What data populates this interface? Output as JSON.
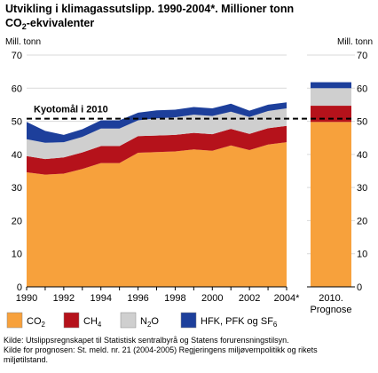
{
  "chart_data": {
    "type": "area",
    "stacked": true,
    "title_line1": "Utvikling i klimagassutslipp. 1990-2004*. Millioner tonn",
    "title_line2": {
      "pre": "CO",
      "sub": "2",
      "post": "-ekvivalenter"
    },
    "ylabel_left": "Mill. tonn",
    "ylabel_right": "Mill. tonn",
    "ylim": [
      0,
      70
    ],
    "yticks": [
      0,
      10,
      20,
      30,
      40,
      50,
      60,
      70
    ],
    "x": [
      1990,
      1991,
      1992,
      1993,
      1994,
      1995,
      1996,
      1997,
      1998,
      1999,
      2000,
      2001,
      2002,
      2003,
      2004
    ],
    "xticks": [
      {
        "x": 1990,
        "label": "1990"
      },
      {
        "x": 1992,
        "label": "1992"
      },
      {
        "x": 1994,
        "label": "1994"
      },
      {
        "x": 1996,
        "label": "1996"
      },
      {
        "x": 1998,
        "label": "1998"
      },
      {
        "x": 2000,
        "label": "2000"
      },
      {
        "x": 2002,
        "label": "2002"
      },
      {
        "x": 2004,
        "label": "2004*"
      }
    ],
    "series": [
      {
        "key": "co2",
        "name": {
          "pre": "CO",
          "sub": "2",
          "post": ""
        },
        "color": "#f7a13c",
        "values": [
          34.6,
          33.9,
          34.2,
          35.6,
          37.4,
          37.4,
          40.5,
          40.7,
          40.9,
          41.5,
          41.1,
          42.7,
          41.3,
          43.0,
          43.7
        ]
      },
      {
        "key": "ch4",
        "name": {
          "pre": "CH",
          "sub": "4",
          "post": ""
        },
        "color": "#b5121b",
        "values": [
          4.9,
          4.7,
          4.9,
          5.0,
          5.1,
          5.1,
          5.0,
          5.0,
          5.0,
          5.0,
          5.0,
          5.0,
          4.9,
          4.9,
          4.9
        ]
      },
      {
        "key": "n2o",
        "name": {
          "pre": "N",
          "sub": "2",
          "post": "O"
        },
        "color": "#cfcfcf",
        "values": [
          5.1,
          4.9,
          4.6,
          4.7,
          5.3,
          5.3,
          4.8,
          5.2,
          5.3,
          5.5,
          5.5,
          5.2,
          5.1,
          5.2,
          5.3
        ]
      },
      {
        "key": "hfk",
        "name": {
          "pre": "HFK, PFK og SF",
          "sub": "6",
          "post": ""
        },
        "color": "#1d3f9b",
        "values": [
          5.2,
          3.6,
          2.2,
          2.3,
          2.5,
          2.5,
          2.3,
          2.4,
          2.3,
          2.3,
          2.3,
          2.4,
          1.9,
          1.9,
          1.8
        ]
      }
    ],
    "forecast": {
      "label_line1": "2010.",
      "label_line2": "Prognose",
      "stack": {
        "co2": 49.8,
        "ch4": 4.9,
        "n2o": 5.3,
        "hfk": 1.8
      }
    },
    "reference_line": {
      "value": 50.8,
      "label": "Kyotomål i 2010"
    },
    "grid": true,
    "legend_position": "bottom",
    "source_lines": [
      "Kilde: Utslippsregnskapet til Statistisk sentralbyrå og Statens forurensningstilsyn.",
      "Kilde for prognosen: St. meld. nr. 21 (2004-2005) Regjeringens miljøvernpolitikk og rikets",
      "miljøtilstand."
    ]
  }
}
